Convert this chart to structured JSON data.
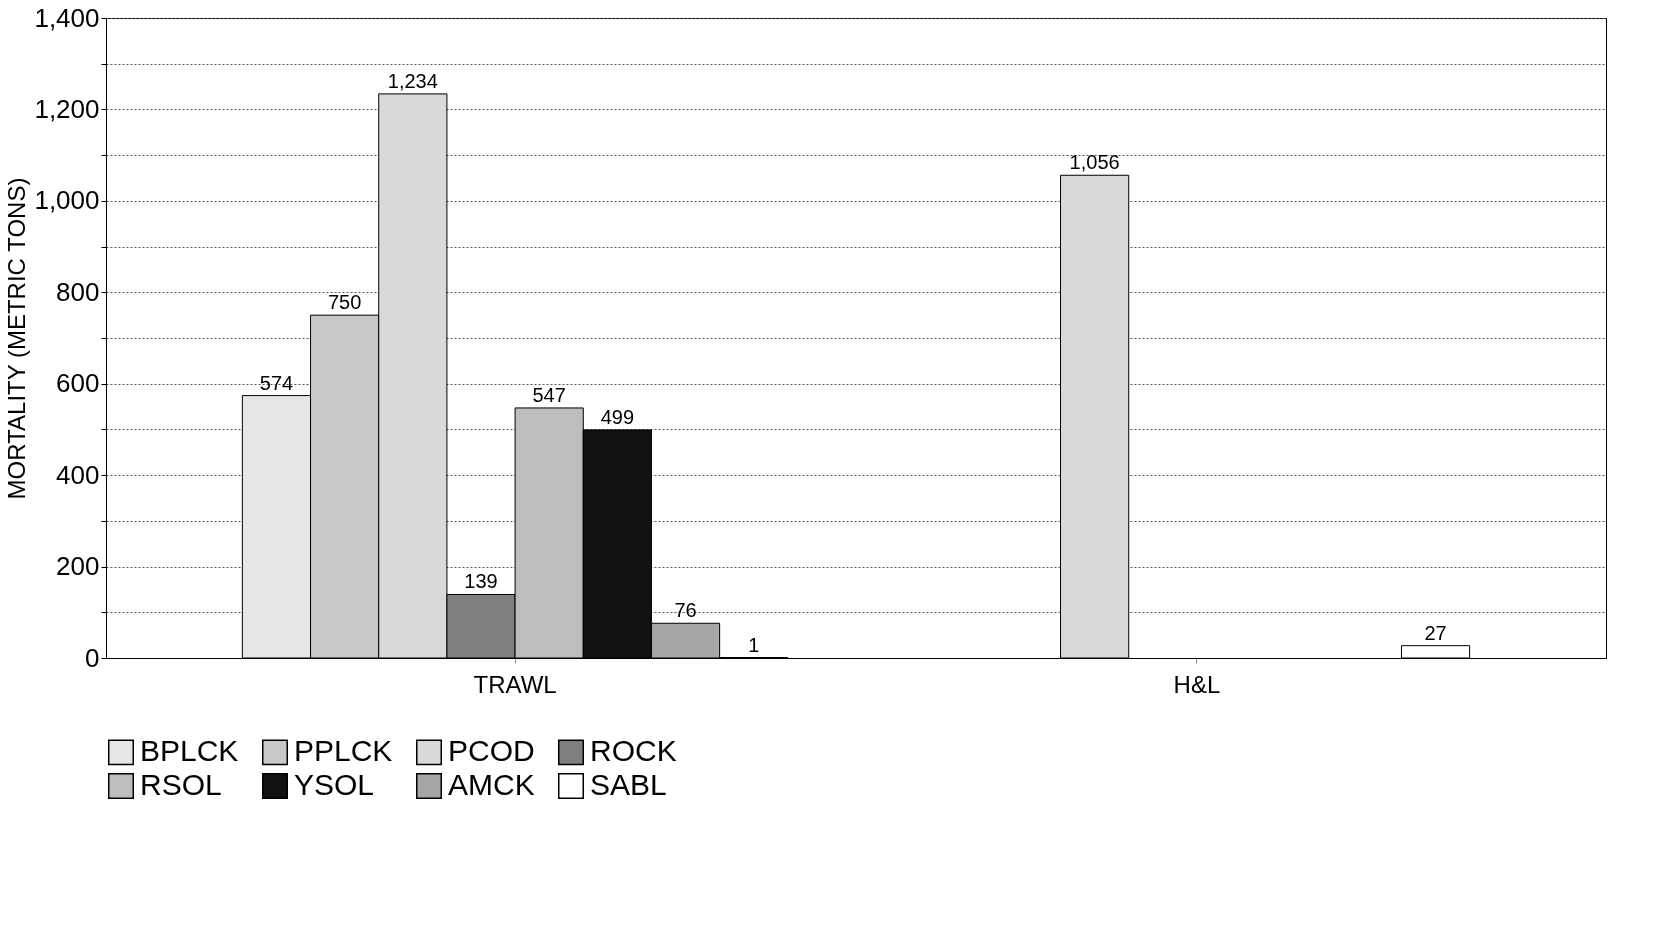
{
  "chart_data": {
    "type": "bar",
    "ylabel": "MORTALITY (METRIC TONS)",
    "categories": [
      "TRAWL",
      "H&L"
    ],
    "series": [
      {
        "name": "BPLCK",
        "color": "#e6e6e6",
        "values": [
          574,
          null
        ],
        "value_labels": [
          "574",
          null
        ]
      },
      {
        "name": "PPLCK",
        "color": "#c8c8c8",
        "values": [
          750,
          null
        ],
        "value_labels": [
          "750",
          null
        ]
      },
      {
        "name": "PCOD",
        "color": "#d9d9d9",
        "values": [
          1234,
          1056
        ],
        "value_labels": [
          "1,234",
          "1,056"
        ]
      },
      {
        "name": "ROCK",
        "color": "#7f7f7f",
        "values": [
          139,
          null
        ],
        "value_labels": [
          "139",
          null
        ]
      },
      {
        "name": "RSOL",
        "color": "#bdbdbd",
        "values": [
          547,
          null
        ],
        "value_labels": [
          "547",
          null
        ]
      },
      {
        "name": "YSOL",
        "color": "#111111",
        "values": [
          499,
          null
        ],
        "value_labels": [
          "499",
          null
        ]
      },
      {
        "name": "AMCK",
        "color": "#a6a6a6",
        "values": [
          76,
          null
        ],
        "value_labels": [
          "76",
          null
        ]
      },
      {
        "name": "SABL",
        "color": "#ffffff",
        "values": [
          1,
          27
        ],
        "value_labels": [
          "1",
          "27"
        ]
      }
    ],
    "ylim": [
      0,
      1400
    ],
    "yticks": [
      0,
      {
        "value": 100,
        "label": null
      },
      200,
      {
        "value": 300,
        "label": null
      },
      400,
      {
        "value": 500,
        "label": null
      },
      600,
      {
        "value": 700,
        "label": null
      },
      800,
      {
        "value": 900,
        "label": null
      },
      {
        "value": 1000,
        "label": "1,000"
      },
      {
        "value": 1100,
        "label": null
      },
      {
        "value": 1200,
        "label": "1,200"
      },
      {
        "value": 1300,
        "label": null
      },
      {
        "value": 1400,
        "label": "1,400"
      }
    ],
    "grid": "y",
    "legend": "bottom"
  }
}
